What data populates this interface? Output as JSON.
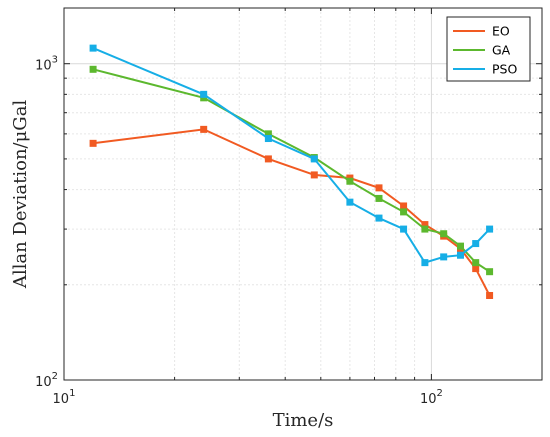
{
  "chart_data": {
    "type": "line",
    "title": "",
    "xlabel": "Time/s",
    "ylabel": "Allan Deviation/μGal",
    "xscale": "log",
    "yscale": "log",
    "xlim": [
      10,
      200
    ],
    "ylim": [
      100,
      1500
    ],
    "grid": true,
    "legend_position": "top-right",
    "x_ticks": [
      {
        "value": 10,
        "label": "10",
        "exp": "1"
      },
      {
        "value": 100,
        "label": "10",
        "exp": "2"
      }
    ],
    "y_ticks": [
      {
        "value": 100,
        "label": "10",
        "exp": "2"
      },
      {
        "value": 1000,
        "label": "10",
        "exp": "3"
      }
    ],
    "x": [
      12,
      24,
      36,
      48,
      60,
      72,
      84,
      96,
      108,
      120,
      132,
      144
    ],
    "series": [
      {
        "name": "EO",
        "color": "#f15a22",
        "values": [
          560,
          620,
          500,
          445,
          435,
          405,
          355,
          310,
          285,
          260,
          225,
          185
        ]
      },
      {
        "name": "GA",
        "color": "#5cb82e",
        "values": [
          960,
          780,
          600,
          505,
          425,
          375,
          340,
          300,
          290,
          265,
          235,
          220
        ]
      },
      {
        "name": "PSO",
        "color": "#16aee6",
        "values": [
          1120,
          800,
          580,
          500,
          365,
          325,
          300,
          235,
          245,
          248,
          270,
          300
        ]
      }
    ]
  }
}
